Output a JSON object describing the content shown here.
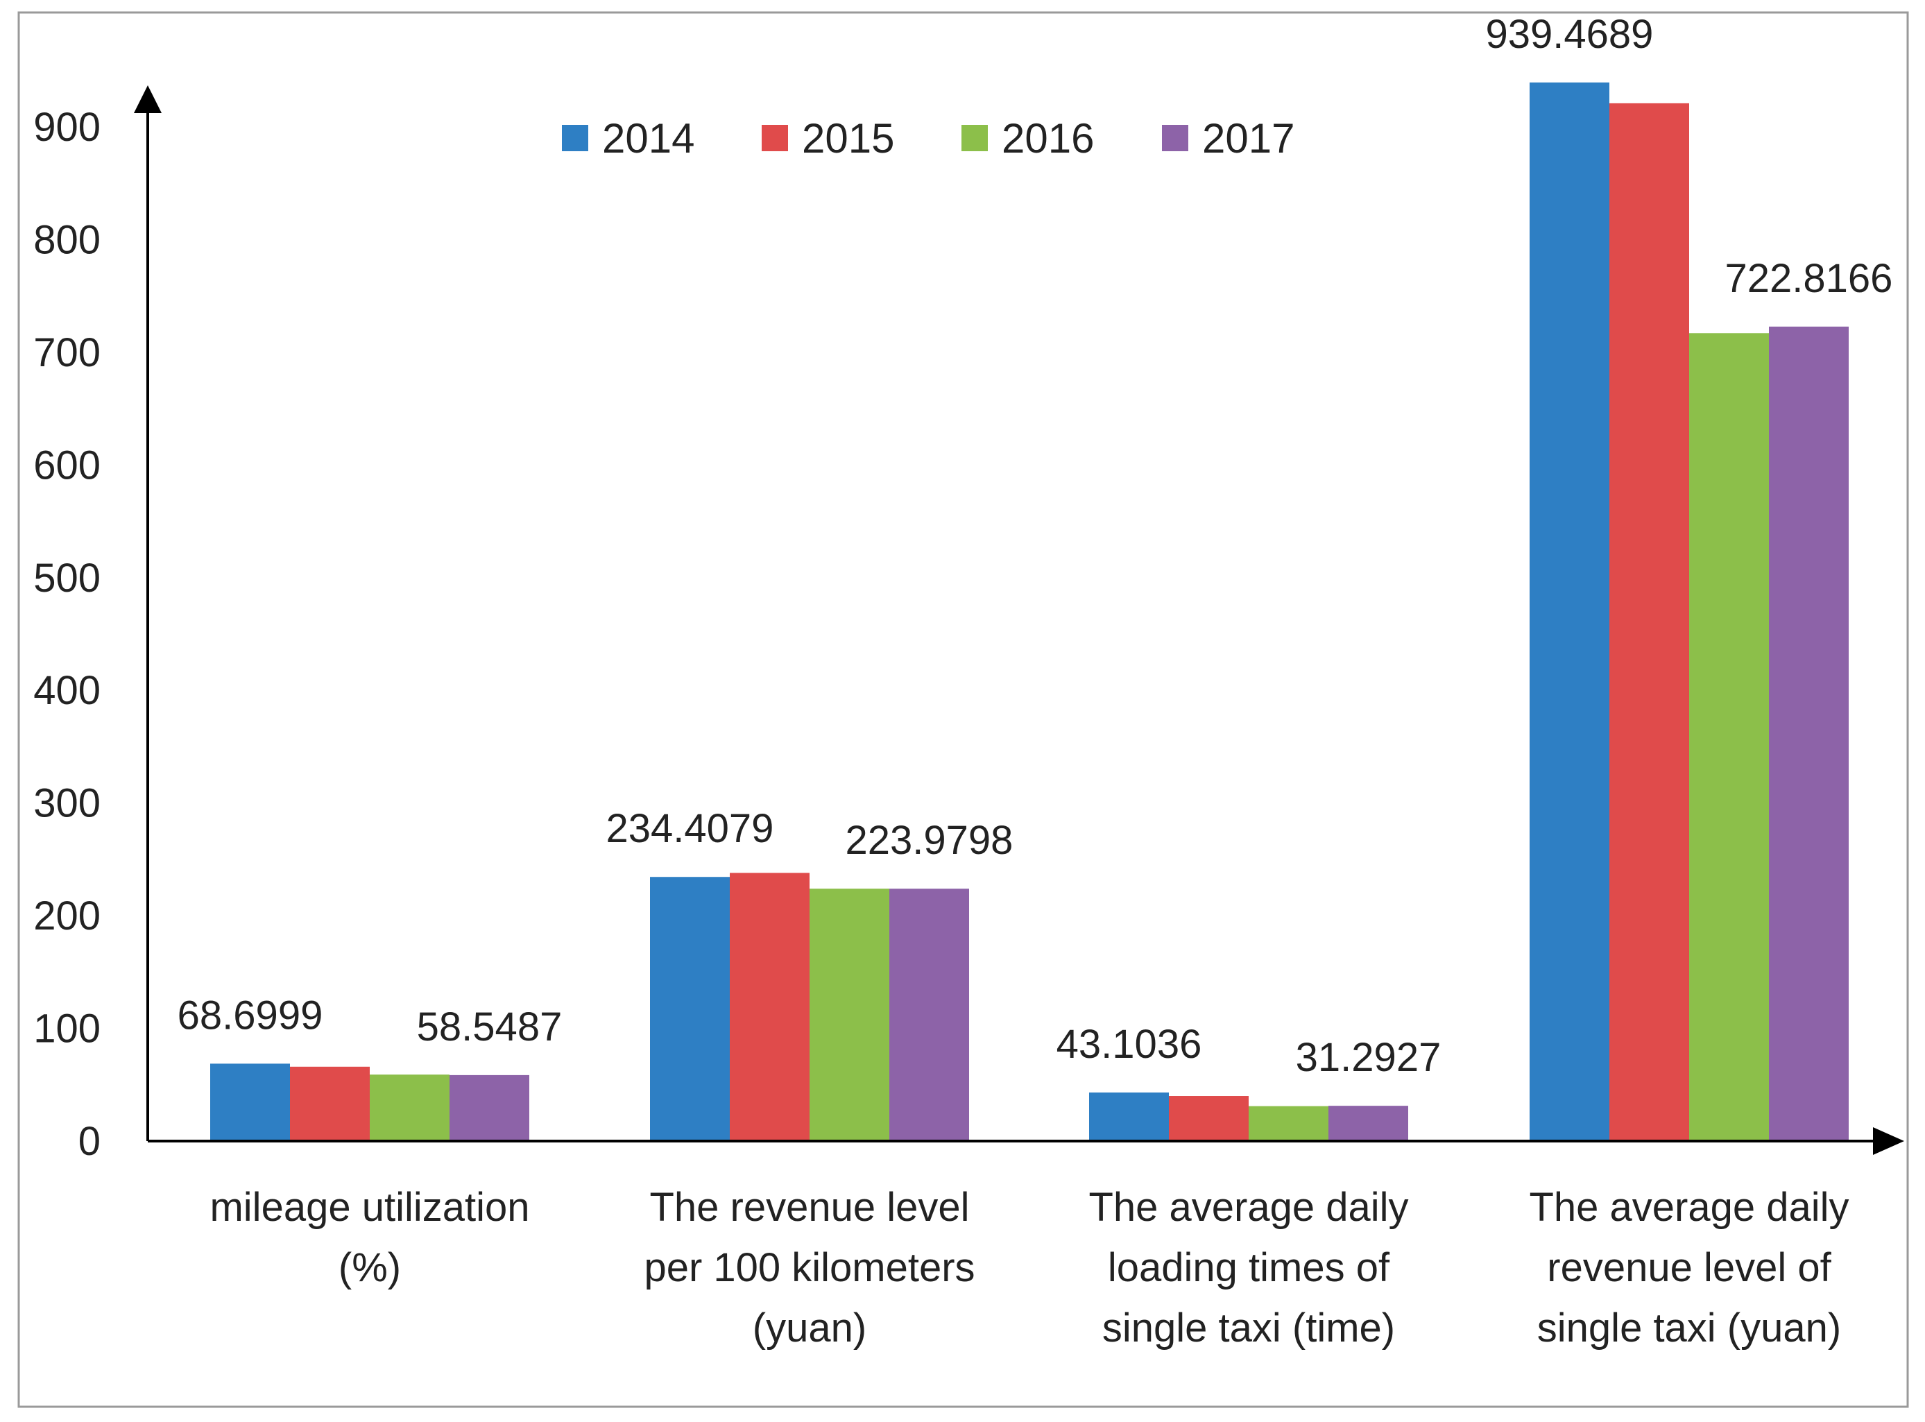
{
  "chart_data": {
    "type": "bar",
    "title": "",
    "xlabel": "",
    "ylabel": "",
    "ylim": [
      0,
      900
    ],
    "yticks": [
      0,
      100,
      200,
      300,
      400,
      500,
      600,
      700,
      800,
      900
    ],
    "grid": false,
    "legend_placement": "top-center",
    "categories": [
      [
        "mileage utilization",
        "(%)"
      ],
      [
        "The revenue level",
        "per 100 kilometers",
        "(yuan)"
      ],
      [
        "The average daily",
        "loading times of",
        "single taxi (time)"
      ],
      [
        "The average daily",
        "revenue level of",
        "single taxi (yuan)"
      ]
    ],
    "series": [
      {
        "name": "2014",
        "color": "#2e7fc4",
        "values": [
          68.6999,
          234.4079,
          43.1036,
          939.4689
        ]
      },
      {
        "name": "2015",
        "color": "#e04b4b",
        "values": [
          66,
          238,
          40,
          921
        ]
      },
      {
        "name": "2016",
        "color": "#8cbf4a",
        "values": [
          59,
          224,
          31,
          717
        ]
      },
      {
        "name": "2017",
        "color": "#8d63a8",
        "values": [
          58.5487,
          223.9798,
          31.2927,
          722.8166
        ]
      }
    ],
    "data_labels": [
      {
        "text": "68.6999",
        "category": 0,
        "series": 0
      },
      {
        "text": "58.5487",
        "category": 0,
        "series": 3
      },
      {
        "text": "234.4079",
        "category": 1,
        "series": 0
      },
      {
        "text": "223.9798",
        "category": 1,
        "series": 3
      },
      {
        "text": "43.1036",
        "category": 2,
        "series": 0
      },
      {
        "text": "31.2927",
        "category": 2,
        "series": 3
      },
      {
        "text": "939.4689",
        "category": 3,
        "series": 0
      },
      {
        "text": "722.8166",
        "category": 3,
        "series": 3
      }
    ]
  }
}
